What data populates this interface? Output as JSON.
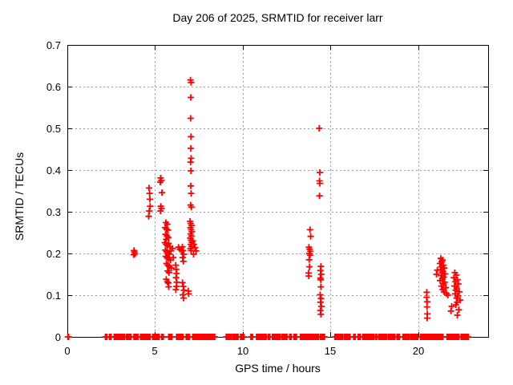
{
  "title": "Day 206 of 2025, SRMTID for receiver larr",
  "chart_data": {
    "type": "scatter",
    "title": "Day 206 of 2025, SRMTID for receiver larr",
    "xlabel": "GPS time / hours",
    "ylabel": "SRMTID / TECUs",
    "xlim": [
      0,
      24
    ],
    "ylim": [
      0,
      0.7
    ],
    "xticks": [
      0,
      5,
      10,
      15,
      20
    ],
    "yticks": [
      0,
      0.1,
      0.2,
      0.3,
      0.4,
      0.5,
      0.6,
      0.7
    ],
    "grid": true,
    "legend": "none",
    "marker": "plus",
    "marker_color": "#ff0000",
    "grid_color": "#9a9a9a",
    "axis_color": "#000000",
    "background_color": "#ffffff",
    "points": [
      [
        3.78,
        0.197
      ],
      [
        3.82,
        0.203
      ],
      [
        3.86,
        0.199
      ],
      [
        3.8,
        0.207
      ],
      [
        4.66,
        0.357
      ],
      [
        4.69,
        0.344
      ],
      [
        4.71,
        0.33
      ],
      [
        4.72,
        0.313
      ],
      [
        4.64,
        0.289
      ],
      [
        4.67,
        0.302
      ],
      [
        5.32,
        0.381
      ],
      [
        5.36,
        0.375
      ],
      [
        5.3,
        0.371
      ],
      [
        5.4,
        0.346
      ],
      [
        5.33,
        0.313
      ],
      [
        5.37,
        0.308
      ],
      [
        5.31,
        0.302
      ],
      [
        5.62,
        0.274
      ],
      [
        5.7,
        0.27
      ],
      [
        5.58,
        0.262
      ],
      [
        5.66,
        0.258
      ],
      [
        5.74,
        0.256
      ],
      [
        5.6,
        0.246
      ],
      [
        5.68,
        0.242
      ],
      [
        5.76,
        0.238
      ],
      [
        5.64,
        0.234
      ],
      [
        5.56,
        0.226
      ],
      [
        5.63,
        0.222
      ],
      [
        5.71,
        0.219
      ],
      [
        5.78,
        0.224
      ],
      [
        5.85,
        0.216
      ],
      [
        5.59,
        0.208
      ],
      [
        5.67,
        0.204
      ],
      [
        5.75,
        0.201
      ],
      [
        5.82,
        0.198
      ],
      [
        5.9,
        0.206
      ],
      [
        5.61,
        0.193
      ],
      [
        5.69,
        0.19
      ],
      [
        5.77,
        0.187
      ],
      [
        5.88,
        0.184
      ],
      [
        5.65,
        0.176
      ],
      [
        5.73,
        0.172
      ],
      [
        5.81,
        0.168
      ],
      [
        5.93,
        0.165
      ],
      [
        5.72,
        0.158
      ],
      [
        5.8,
        0.154
      ],
      [
        6.0,
        0.212
      ],
      [
        6.04,
        0.19
      ],
      [
        5.64,
        0.138
      ],
      [
        5.7,
        0.132
      ],
      [
        5.76,
        0.129
      ],
      [
        5.78,
        0.12
      ],
      [
        6.18,
        0.172
      ],
      [
        6.21,
        0.162
      ],
      [
        6.23,
        0.152
      ],
      [
        6.2,
        0.142
      ],
      [
        6.24,
        0.131
      ],
      [
        6.22,
        0.121
      ],
      [
        6.19,
        0.113
      ],
      [
        6.34,
        0.215
      ],
      [
        6.42,
        0.21
      ],
      [
        6.52,
        0.207
      ],
      [
        6.56,
        0.216
      ],
      [
        6.6,
        0.207
      ],
      [
        6.64,
        0.198
      ],
      [
        6.58,
        0.19
      ],
      [
        6.62,
        0.181
      ],
      [
        6.57,
        0.13
      ],
      [
        6.61,
        0.121
      ],
      [
        6.65,
        0.112
      ],
      [
        6.59,
        0.101
      ],
      [
        6.63,
        0.093
      ],
      [
        6.9,
        0.11
      ],
      [
        6.92,
        0.103
      ],
      [
        7.02,
        0.616
      ],
      [
        7.06,
        0.61
      ],
      [
        7.04,
        0.574
      ],
      [
        7.03,
        0.524
      ],
      [
        7.05,
        0.48
      ],
      [
        7.04,
        0.452
      ],
      [
        7.06,
        0.428
      ],
      [
        7.03,
        0.419
      ],
      [
        7.05,
        0.398
      ],
      [
        7.04,
        0.362
      ],
      [
        7.06,
        0.344
      ],
      [
        7.03,
        0.316
      ],
      [
        7.07,
        0.311
      ],
      [
        7.0,
        0.277
      ],
      [
        7.04,
        0.272
      ],
      [
        7.08,
        0.267
      ],
      [
        7.02,
        0.262
      ],
      [
        7.06,
        0.257
      ],
      [
        7.1,
        0.252
      ],
      [
        7.03,
        0.247
      ],
      [
        7.07,
        0.242
      ],
      [
        7.01,
        0.237
      ],
      [
        7.05,
        0.232
      ],
      [
        7.09,
        0.227
      ],
      [
        7.04,
        0.222
      ],
      [
        7.08,
        0.217
      ],
      [
        7.02,
        0.212
      ],
      [
        7.06,
        0.207
      ],
      [
        7.16,
        0.23
      ],
      [
        7.22,
        0.222
      ],
      [
        7.28,
        0.214
      ],
      [
        7.34,
        0.206
      ],
      [
        7.2,
        0.198
      ],
      [
        13.84,
        0.257
      ],
      [
        13.88,
        0.241
      ],
      [
        13.78,
        0.215
      ],
      [
        13.82,
        0.21
      ],
      [
        13.86,
        0.205
      ],
      [
        13.8,
        0.2
      ],
      [
        13.84,
        0.196
      ],
      [
        13.79,
        0.185
      ],
      [
        13.81,
        0.168
      ],
      [
        13.76,
        0.153
      ],
      [
        13.77,
        0.146
      ],
      [
        14.37,
        0.5
      ],
      [
        14.4,
        0.394
      ],
      [
        14.38,
        0.374
      ],
      [
        14.4,
        0.368
      ],
      [
        14.38,
        0.338
      ],
      [
        14.46,
        0.169
      ],
      [
        14.44,
        0.159
      ],
      [
        14.48,
        0.15
      ],
      [
        14.43,
        0.141
      ],
      [
        14.45,
        0.137
      ],
      [
        14.46,
        0.12
      ],
      [
        14.42,
        0.101
      ],
      [
        14.47,
        0.092
      ],
      [
        14.44,
        0.083
      ],
      [
        14.49,
        0.073
      ],
      [
        14.43,
        0.063
      ],
      [
        14.46,
        0.054
      ],
      [
        20.5,
        0.107
      ],
      [
        20.49,
        0.095
      ],
      [
        20.52,
        0.084
      ],
      [
        20.51,
        0.072
      ],
      [
        20.53,
        0.055
      ],
      [
        20.52,
        0.045
      ],
      [
        21.3,
        0.188
      ],
      [
        21.4,
        0.184
      ],
      [
        21.35,
        0.18
      ],
      [
        21.25,
        0.176
      ],
      [
        21.45,
        0.172
      ],
      [
        21.33,
        0.168
      ],
      [
        21.5,
        0.165
      ],
      [
        21.28,
        0.161
      ],
      [
        21.42,
        0.158
      ],
      [
        21.37,
        0.154
      ],
      [
        21.55,
        0.151
      ],
      [
        21.31,
        0.147
      ],
      [
        21.47,
        0.143
      ],
      [
        21.39,
        0.139
      ],
      [
        21.26,
        0.135
      ],
      [
        21.52,
        0.131
      ],
      [
        21.44,
        0.127
      ],
      [
        21.34,
        0.122
      ],
      [
        21.58,
        0.118
      ],
      [
        21.41,
        0.113
      ],
      [
        21.48,
        0.108
      ],
      [
        21.62,
        0.104
      ],
      [
        21.7,
        0.1
      ],
      [
        21.1,
        0.16
      ],
      [
        21.05,
        0.15
      ],
      [
        21.92,
        0.073
      ],
      [
        21.88,
        0.062
      ],
      [
        22.1,
        0.154
      ],
      [
        22.18,
        0.148
      ],
      [
        22.05,
        0.142
      ],
      [
        22.25,
        0.137
      ],
      [
        22.13,
        0.132
      ],
      [
        22.3,
        0.127
      ],
      [
        22.08,
        0.122
      ],
      [
        22.21,
        0.117
      ],
      [
        22.15,
        0.112
      ],
      [
        22.35,
        0.108
      ],
      [
        22.11,
        0.103
      ],
      [
        22.27,
        0.098
      ],
      [
        22.19,
        0.093
      ],
      [
        22.4,
        0.088
      ],
      [
        22.23,
        0.083
      ],
      [
        22.16,
        0.077
      ],
      [
        22.32,
        0.065
      ],
      [
        22.24,
        0.052
      ]
    ],
    "baseline_value": 0,
    "baseline_runs": [
      [
        0.03,
        0.08
      ],
      [
        2.17,
        2.28
      ],
      [
        2.4,
        2.5
      ],
      [
        2.67,
        3.27
      ],
      [
        3.36,
        3.63
      ],
      [
        3.8,
        4.05
      ],
      [
        4.18,
        4.73
      ],
      [
        4.87,
        5.23
      ],
      [
        5.38,
        5.48
      ],
      [
        5.78,
        6.0
      ],
      [
        6.23,
        6.6
      ],
      [
        6.78,
        7.0
      ],
      [
        7.15,
        7.25
      ],
      [
        7.28,
        8.42
      ],
      [
        9.06,
        9.33
      ],
      [
        9.42,
        9.74
      ],
      [
        9.88,
        10.06
      ],
      [
        10.47,
        10.6
      ],
      [
        10.79,
        11.07
      ],
      [
        11.11,
        11.34
      ],
      [
        11.46,
        11.58
      ],
      [
        11.7,
        12.16
      ],
      [
        12.25,
        12.53
      ],
      [
        12.68,
        12.78
      ],
      [
        12.93,
        13.07
      ],
      [
        13.3,
        14.35
      ],
      [
        14.44,
        14.67
      ],
      [
        15.26,
        15.72
      ],
      [
        15.81,
        16.13
      ],
      [
        16.33,
        16.42
      ],
      [
        16.58,
        16.72
      ],
      [
        16.86,
        17.5
      ],
      [
        17.6,
        17.66
      ],
      [
        17.77,
        18.25
      ],
      [
        18.32,
        18.7
      ],
      [
        18.8,
        18.94
      ],
      [
        19.15,
        19.55
      ],
      [
        19.6,
        19.83
      ],
      [
        19.9,
        20.0
      ],
      [
        20.14,
        21.13
      ],
      [
        21.19,
        21.42
      ],
      [
        21.65,
        22.33
      ],
      [
        22.46,
        22.88
      ]
    ]
  }
}
